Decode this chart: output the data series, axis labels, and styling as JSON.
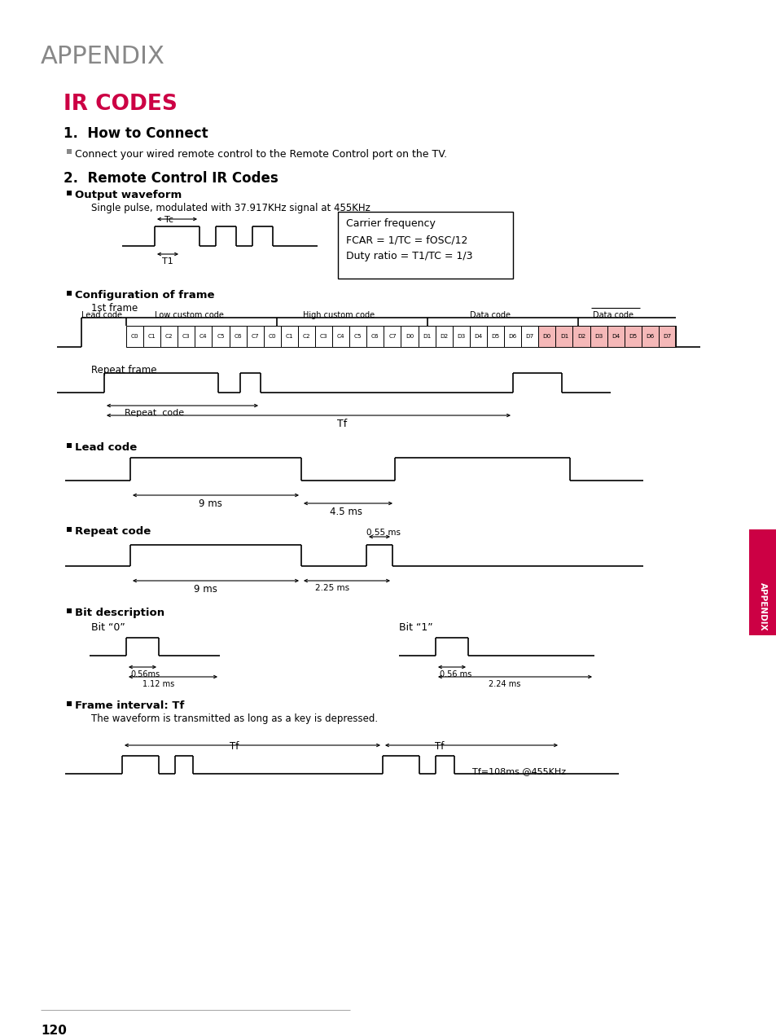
{
  "bg_color": "#ffffff",
  "appendix_title": "APPENDIX",
  "appendix_title_color": "#888888",
  "ir_codes_title": "IR CODES",
  "ir_codes_color": "#cc0044",
  "section1_title": "1.  How to Connect",
  "section1_bullet": "Connect your wired remote control to the Remote Control port on the TV.",
  "section2_title": "2.  Remote Control IR Codes",
  "output_waveform_label": "Output waveform",
  "output_waveform_desc": "Single pulse, modulated with 37.917KHz signal at 455KHz",
  "carrier_box_lines": [
    "Carrier frequency",
    "FCAR = 1/TC = fOSC/12",
    "Duty ratio = T1/TC = 1/3"
  ],
  "config_frame_label": "Configuration of frame",
  "first_frame_label": "1st frame",
  "lead_code_label": "Lead code",
  "low_custom_label": "Low custom code",
  "high_custom_label": "High custom code",
  "data_code_label1": "Data code",
  "data_code_label2": "Data code",
  "frame_cells_normal": [
    "C0",
    "C1",
    "C2",
    "C3",
    "C4",
    "C5",
    "C6",
    "C7",
    "C0",
    "C1",
    "C2",
    "C3",
    "C4",
    "C5",
    "C6",
    "C7",
    "D0",
    "D1",
    "D2",
    "D3",
    "D4",
    "D5",
    "D6",
    "D7"
  ],
  "frame_cells_highlight": [
    "D0",
    "D1",
    "D2",
    "D3",
    "D4",
    "D5",
    "D6",
    "D7"
  ],
  "repeat_frame_label": "Repeat frame",
  "repeat_code_text": "Repeat  code",
  "tf_text": "Tf",
  "lead_code_section_label": "Lead code",
  "lead_9ms": "9 ms",
  "lead_4_5ms": "4.5 ms",
  "repeat_code_section_label": "Repeat code",
  "repeat_0_55ms": "0.55 ms",
  "repeat_9ms": "9 ms",
  "repeat_2_25ms": "2.25 ms",
  "bit_desc_label": "Bit description",
  "bit0_label": "Bit “0”",
  "bit1_label": "Bit “1”",
  "bit0_0_56ms": "0.56ms",
  "bit0_1_12ms": "1.12 ms",
  "bit1_0_56ms": "0.56 ms",
  "bit1_2_24ms": "2.24 ms",
  "frame_interval_label": "Frame interval: Tf",
  "frame_interval_desc": "The waveform is transmitted as long as a key is depressed.",
  "tf_label1": "Tf",
  "tf_label2": "Tf",
  "tf_formula": "Tf=108ms @455KHz",
  "page_num": "120",
  "sidebar_text": "APPENDIX",
  "sidebar_color": "#cc0044",
  "bullet_color": "#888888",
  "black": "#000000",
  "gray": "#888888",
  "light_pink": "#f5b8b8"
}
